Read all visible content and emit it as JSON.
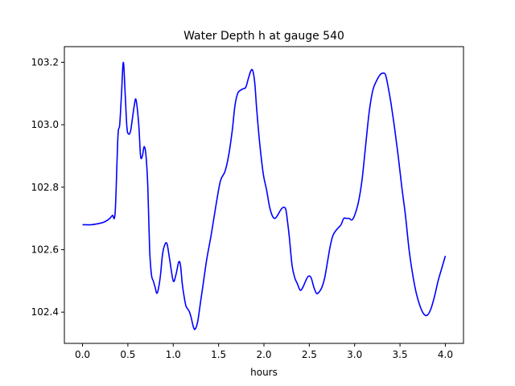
{
  "chart_data": {
    "type": "line",
    "title": "Water Depth h at gauge 540",
    "xlabel": "hours",
    "ylabel": "",
    "xlim": [
      -0.2,
      4.2
    ],
    "ylim": [
      102.3,
      103.25
    ],
    "xticks": [
      0.0,
      0.5,
      1.0,
      1.5,
      2.0,
      2.5,
      3.0,
      3.5,
      4.0
    ],
    "xtick_labels": [
      "0.0",
      "0.5",
      "1.0",
      "1.5",
      "2.0",
      "2.5",
      "3.0",
      "3.5",
      "4.0"
    ],
    "yticks": [
      102.4,
      102.6,
      102.8,
      103.0,
      103.2
    ],
    "ytick_labels": [
      "102.4",
      "102.6",
      "102.8",
      "103.0",
      "103.2"
    ],
    "grid": false,
    "line_color": "#0000ff",
    "series": [
      {
        "x": [
          0.0,
          0.1,
          0.2,
          0.25,
          0.3,
          0.33,
          0.36,
          0.39,
          0.41,
          0.43,
          0.45,
          0.47,
          0.49,
          0.51,
          0.53,
          0.55,
          0.57,
          0.59,
          0.62,
          0.64,
          0.66,
          0.68,
          0.7,
          0.72,
          0.74,
          0.76,
          0.78,
          0.8,
          0.82,
          0.84,
          0.86,
          0.88,
          0.9,
          0.93,
          0.96,
          1.0,
          1.03,
          1.06,
          1.08,
          1.1,
          1.12,
          1.14,
          1.16,
          1.18,
          1.2,
          1.22,
          1.24,
          1.27,
          1.3,
          1.33,
          1.37,
          1.42,
          1.47,
          1.52,
          1.57,
          1.61,
          1.65,
          1.68,
          1.71,
          1.74,
          1.77,
          1.8,
          1.83,
          1.86,
          1.88,
          1.9,
          1.92,
          1.95,
          1.98,
          2.0,
          2.03,
          2.06,
          2.09,
          2.12,
          2.15,
          2.18,
          2.21,
          2.24,
          2.26,
          2.28,
          2.31,
          2.34,
          2.37,
          2.4,
          2.43,
          2.46,
          2.49,
          2.52,
          2.55,
          2.58,
          2.61,
          2.64,
          2.67,
          2.7,
          2.73,
          2.76,
          2.79,
          2.82,
          2.85,
          2.88,
          2.91,
          2.94,
          2.97,
          3.0,
          3.04,
          3.08,
          3.12,
          3.16,
          3.2,
          3.24,
          3.28,
          3.31,
          3.34,
          3.37,
          3.4,
          3.44,
          3.48,
          3.52,
          3.56,
          3.6,
          3.64,
          3.68,
          3.72,
          3.76,
          3.8,
          3.84,
          3.88,
          3.92,
          3.96,
          4.0
        ],
        "y": [
          102.68,
          102.68,
          102.685,
          102.69,
          102.7,
          102.71,
          102.72,
          102.96,
          103.0,
          103.1,
          103.2,
          103.1,
          102.99,
          102.97,
          102.98,
          103.02,
          103.06,
          103.08,
          103.0,
          102.9,
          102.9,
          102.93,
          102.9,
          102.8,
          102.6,
          102.52,
          102.5,
          102.48,
          102.46,
          102.48,
          102.52,
          102.58,
          102.61,
          102.62,
          102.57,
          102.5,
          102.52,
          102.56,
          102.55,
          102.49,
          102.45,
          102.42,
          102.41,
          102.4,
          102.38,
          102.355,
          102.345,
          102.37,
          102.43,
          102.49,
          102.57,
          102.65,
          102.74,
          102.82,
          102.85,
          102.9,
          102.98,
          103.06,
          103.1,
          103.11,
          103.115,
          103.12,
          103.15,
          103.175,
          103.17,
          103.13,
          103.05,
          102.95,
          102.87,
          102.83,
          102.79,
          102.74,
          102.71,
          102.7,
          102.71,
          102.725,
          102.735,
          102.73,
          102.69,
          102.64,
          102.55,
          102.51,
          102.49,
          102.47,
          102.48,
          102.5,
          102.515,
          102.51,
          102.48,
          102.46,
          102.465,
          102.48,
          102.51,
          102.56,
          102.61,
          102.645,
          102.66,
          102.67,
          102.68,
          102.7,
          102.7,
          102.7,
          102.695,
          102.71,
          102.75,
          102.82,
          102.93,
          103.04,
          103.11,
          103.14,
          103.16,
          103.165,
          103.16,
          103.12,
          103.07,
          102.99,
          102.9,
          102.8,
          102.71,
          102.6,
          102.52,
          102.46,
          102.42,
          102.395,
          102.39,
          102.41,
          102.45,
          102.5,
          102.54,
          102.58
        ]
      }
    ]
  }
}
